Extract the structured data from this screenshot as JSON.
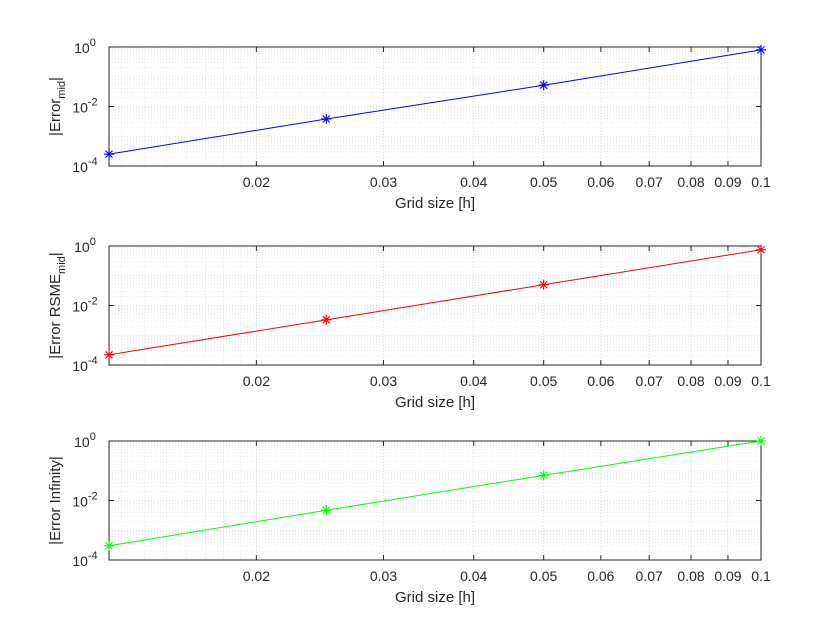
{
  "chart_data": [
    {
      "type": "line",
      "xscale": "log",
      "yscale": "log",
      "xlim": [
        0.0125,
        0.1
      ],
      "ylim": [
        0.0001,
        1
      ],
      "grid": true,
      "xlabel": "Grid size [h]",
      "ylabel_main": "|Error",
      "ylabel_sub": "mid",
      "ylabel_tail": "|",
      "color": "#0000ff",
      "x": [
        0.0125,
        0.025,
        0.05,
        0.1
      ],
      "y": [
        0.00025,
        0.0038,
        0.052,
        0.8
      ],
      "xtick_labels": [
        "0.02",
        "0.03",
        "0.04",
        "0.05",
        "0.06",
        "0.07",
        "0.08",
        "0.09",
        "0.1"
      ],
      "xtick_values": [
        0.02,
        0.03,
        0.04,
        0.05,
        0.06,
        0.07,
        0.08,
        0.09,
        0.1
      ],
      "ytick_values": [
        0.0001,
        0.01,
        1
      ],
      "ytick_labels": [
        {
          "base": "10",
          "exp": "-4"
        },
        {
          "base": "10",
          "exp": "-2"
        },
        {
          "base": "10",
          "exp": "0"
        }
      ]
    },
    {
      "type": "line",
      "xscale": "log",
      "yscale": "log",
      "xlim": [
        0.0125,
        0.1
      ],
      "ylim": [
        0.0001,
        1
      ],
      "grid": true,
      "xlabel": "Grid size [h]",
      "ylabel_main": "|Error RSME",
      "ylabel_sub": "mid",
      "ylabel_tail": "|",
      "color": "#ff0000",
      "x": [
        0.0125,
        0.025,
        0.05,
        0.1
      ],
      "y": [
        0.00022,
        0.0033,
        0.05,
        0.75
      ],
      "xtick_labels": [
        "0.02",
        "0.03",
        "0.04",
        "0.05",
        "0.06",
        "0.07",
        "0.08",
        "0.09",
        "0.1"
      ],
      "xtick_values": [
        0.02,
        0.03,
        0.04,
        0.05,
        0.06,
        0.07,
        0.08,
        0.09,
        0.1
      ],
      "ytick_values": [
        0.0001,
        0.01,
        1
      ],
      "ytick_labels": [
        {
          "base": "10",
          "exp": "-4"
        },
        {
          "base": "10",
          "exp": "-2"
        },
        {
          "base": "10",
          "exp": "0"
        }
      ]
    },
    {
      "type": "line",
      "xscale": "log",
      "yscale": "log",
      "xlim": [
        0.0125,
        0.1
      ],
      "ylim": [
        0.0001,
        1
      ],
      "grid": true,
      "xlabel": "Grid size [h]",
      "ylabel_main": "|Error Infinity|",
      "ylabel_sub": "",
      "ylabel_tail": "",
      "color": "#00ff00",
      "x": [
        0.0125,
        0.025,
        0.05,
        0.1
      ],
      "y": [
        0.0003,
        0.0047,
        0.07,
        1.0
      ],
      "xtick_labels": [
        "0.02",
        "0.03",
        "0.04",
        "0.05",
        "0.06",
        "0.07",
        "0.08",
        "0.09",
        "0.1"
      ],
      "xtick_values": [
        0.02,
        0.03,
        0.04,
        0.05,
        0.06,
        0.07,
        0.08,
        0.09,
        0.1
      ],
      "ytick_values": [
        0.0001,
        0.01,
        1
      ],
      "ytick_labels": [
        {
          "base": "10",
          "exp": "-4"
        },
        {
          "base": "10",
          "exp": "-2"
        },
        {
          "base": "10",
          "exp": "0"
        }
      ]
    }
  ]
}
